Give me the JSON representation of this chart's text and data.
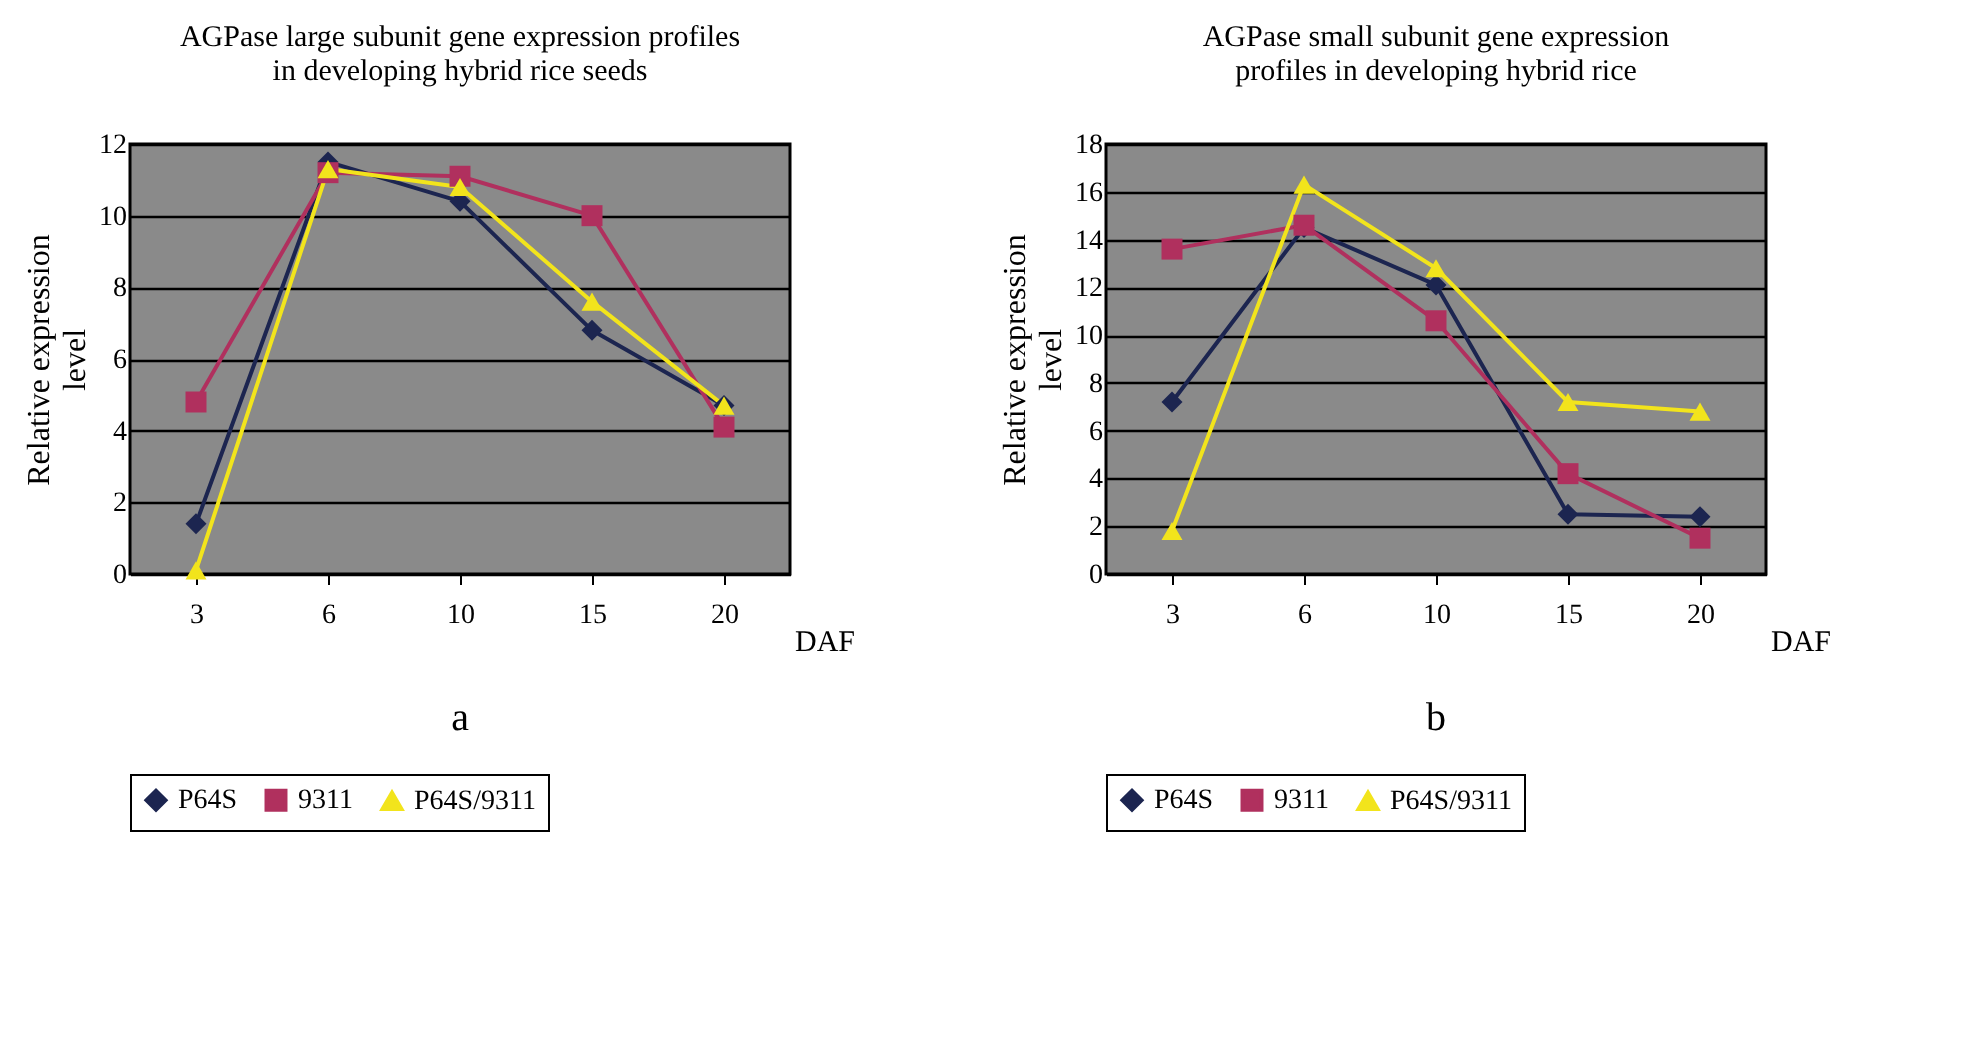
{
  "chart_data": [
    {
      "type": "line",
      "title": "AGPase large subunit gene expression profiles in developing hybrid rice seeds",
      "xlabel": "DAF",
      "ylabel": "Relative expression level",
      "categories": [
        "3",
        "6",
        "10",
        "15",
        "20"
      ],
      "ylim": [
        0,
        12
      ],
      "yticks": [
        0,
        2,
        4,
        6,
        8,
        10,
        12
      ],
      "grid": "y",
      "legend": "bottom",
      "line_style": "solid",
      "annotations": [
        "a"
      ],
      "series": [
        {
          "name": "P64S",
          "color": "#1c2550",
          "marker": "diamond",
          "values": [
            1.4,
            11.5,
            10.4,
            6.8,
            4.7
          ]
        },
        {
          "name": "9311",
          "color": "#b0305e",
          "marker": "square",
          "values": [
            4.8,
            11.2,
            11.1,
            10.0,
            4.1
          ]
        },
        {
          "name": "P64S/9311",
          "color": "#f2e41c",
          "marker": "triangle",
          "values": [
            0.1,
            11.3,
            10.8,
            7.6,
            4.7
          ]
        }
      ]
    },
    {
      "type": "line",
      "title": "AGPase small subunit gene expression profiles in developing hybrid rice",
      "xlabel": "DAF",
      "ylabel": "Relative expression level",
      "categories": [
        "3",
        "6",
        "10",
        "15",
        "20"
      ],
      "ylim": [
        0,
        18
      ],
      "yticks": [
        0,
        2,
        4,
        6,
        8,
        10,
        12,
        14,
        16,
        18
      ],
      "grid": "y",
      "legend": "bottom",
      "line_style": "solid",
      "annotations": [
        "b"
      ],
      "series": [
        {
          "name": "P64S",
          "color": "#1c2550",
          "marker": "diamond",
          "values": [
            7.2,
            14.5,
            12.1,
            2.5,
            2.4
          ]
        },
        {
          "name": "9311",
          "color": "#b0305e",
          "marker": "square",
          "values": [
            13.6,
            14.6,
            10.6,
            4.2,
            1.5
          ]
        },
        {
          "name": "P64S/9311",
          "color": "#f2e41c",
          "marker": "triangle",
          "values": [
            1.8,
            16.3,
            12.8,
            7.2,
            6.8
          ]
        }
      ]
    }
  ]
}
